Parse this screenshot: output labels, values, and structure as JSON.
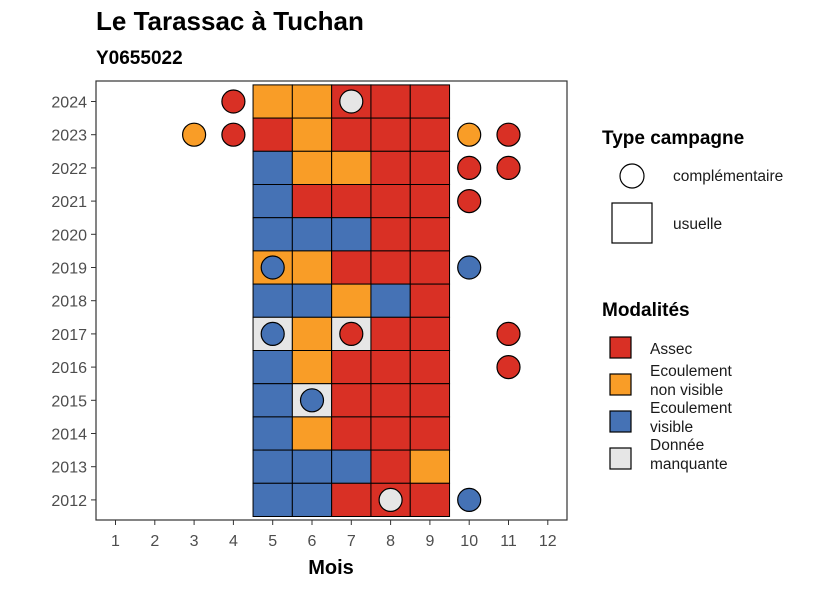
{
  "chart_data": {
    "type": "heatmap",
    "title": "Le Tarassac à Tuchan",
    "subtitle": "Y0655022",
    "xlabel": "Mois",
    "ylabel": "",
    "x_ticks": [
      1,
      2,
      3,
      4,
      5,
      6,
      7,
      8,
      9,
      10,
      11,
      12
    ],
    "y_ticks": [
      2012,
      2013,
      2014,
      2015,
      2016,
      2017,
      2018,
      2019,
      2020,
      2021,
      2022,
      2023,
      2024
    ],
    "grid": false,
    "colors": {
      "Assec": "#d93025",
      "Ecoulement non visible": "#f99d27",
      "Ecoulement visible": "#4572b5",
      "Donnée manquante": "#e6e6e6"
    },
    "legend_shape": {
      "title": "Type campagne",
      "entries": [
        {
          "label": "complémentaire",
          "shape": "circle"
        },
        {
          "label": "usuelle",
          "shape": "square"
        }
      ]
    },
    "legend_fill": {
      "title": "Modalités",
      "entries": [
        {
          "key": "Assec",
          "lines": [
            "Assec"
          ]
        },
        {
          "key": "Ecoulement non visible",
          "lines": [
            "Ecoulement",
            "non visible"
          ]
        },
        {
          "key": "Ecoulement visible",
          "lines": [
            "Ecoulement",
            "visible"
          ]
        },
        {
          "key": "Donnée manquante",
          "lines": [
            "Donnée",
            "manquante"
          ]
        }
      ]
    },
    "usuelle": [
      {
        "year": 2024,
        "values": {
          "5": "Ecoulement non visible",
          "6": "Ecoulement non visible",
          "7": "Assec",
          "8": "Assec",
          "9": "Assec"
        }
      },
      {
        "year": 2023,
        "values": {
          "5": "Assec",
          "6": "Ecoulement non visible",
          "7": "Assec",
          "8": "Assec",
          "9": "Assec"
        }
      },
      {
        "year": 2022,
        "values": {
          "5": "Ecoulement visible",
          "6": "Ecoulement non visible",
          "7": "Ecoulement non visible",
          "8": "Assec",
          "9": "Assec"
        }
      },
      {
        "year": 2021,
        "values": {
          "5": "Ecoulement visible",
          "6": "Assec",
          "7": "Assec",
          "8": "Assec",
          "9": "Assec"
        }
      },
      {
        "year": 2020,
        "values": {
          "5": "Ecoulement visible",
          "6": "Ecoulement visible",
          "7": "Ecoulement visible",
          "8": "Assec",
          "9": "Assec"
        }
      },
      {
        "year": 2019,
        "values": {
          "5": "Ecoulement non visible",
          "6": "Ecoulement non visible",
          "7": "Assec",
          "8": "Assec",
          "9": "Assec"
        }
      },
      {
        "year": 2018,
        "values": {
          "5": "Ecoulement visible",
          "6": "Ecoulement visible",
          "7": "Ecoulement non visible",
          "8": "Ecoulement visible",
          "9": "Assec"
        }
      },
      {
        "year": 2017,
        "values": {
          "5": "Donnée manquante",
          "6": "Ecoulement non visible",
          "7": "Donnée manquante",
          "8": "Assec",
          "9": "Assec"
        }
      },
      {
        "year": 2016,
        "values": {
          "5": "Ecoulement visible",
          "6": "Ecoulement non visible",
          "7": "Assec",
          "8": "Assec",
          "9": "Assec"
        }
      },
      {
        "year": 2015,
        "values": {
          "5": "Ecoulement visible",
          "6": "Donnée manquante",
          "7": "Assec",
          "8": "Assec",
          "9": "Assec"
        }
      },
      {
        "year": 2014,
        "values": {
          "5": "Ecoulement visible",
          "6": "Ecoulement non visible",
          "7": "Assec",
          "8": "Assec",
          "9": "Assec"
        }
      },
      {
        "year": 2013,
        "values": {
          "5": "Ecoulement visible",
          "6": "Ecoulement visible",
          "7": "Ecoulement visible",
          "8": "Assec",
          "9": "Ecoulement non visible"
        }
      },
      {
        "year": 2012,
        "values": {
          "5": "Ecoulement visible",
          "6": "Ecoulement visible",
          "7": "Assec",
          "8": "Assec",
          "9": "Assec"
        }
      }
    ],
    "complementaire": [
      {
        "year": 2024,
        "month": 4,
        "value": "Assec"
      },
      {
        "year": 2024,
        "month": 7,
        "value": "Donnée manquante"
      },
      {
        "year": 2023,
        "month": 3,
        "value": "Ecoulement non visible"
      },
      {
        "year": 2023,
        "month": 4,
        "value": "Assec"
      },
      {
        "year": 2023,
        "month": 10,
        "value": "Ecoulement non visible"
      },
      {
        "year": 2023,
        "month": 11,
        "value": "Assec"
      },
      {
        "year": 2022,
        "month": 10,
        "value": "Assec"
      },
      {
        "year": 2022,
        "month": 11,
        "value": "Assec"
      },
      {
        "year": 2021,
        "month": 10,
        "value": "Assec"
      },
      {
        "year": 2019,
        "month": 5,
        "value": "Ecoulement visible"
      },
      {
        "year": 2019,
        "month": 10,
        "value": "Ecoulement visible"
      },
      {
        "year": 2017,
        "month": 5,
        "value": "Ecoulement visible"
      },
      {
        "year": 2017,
        "month": 7,
        "value": "Assec"
      },
      {
        "year": 2017,
        "month": 11,
        "value": "Assec"
      },
      {
        "year": 2016,
        "month": 11,
        "value": "Assec"
      },
      {
        "year": 2015,
        "month": 6,
        "value": "Ecoulement visible"
      },
      {
        "year": 2012,
        "month": 8,
        "value": "Donnée manquante"
      },
      {
        "year": 2012,
        "month": 10,
        "value": "Ecoulement visible"
      }
    ]
  }
}
